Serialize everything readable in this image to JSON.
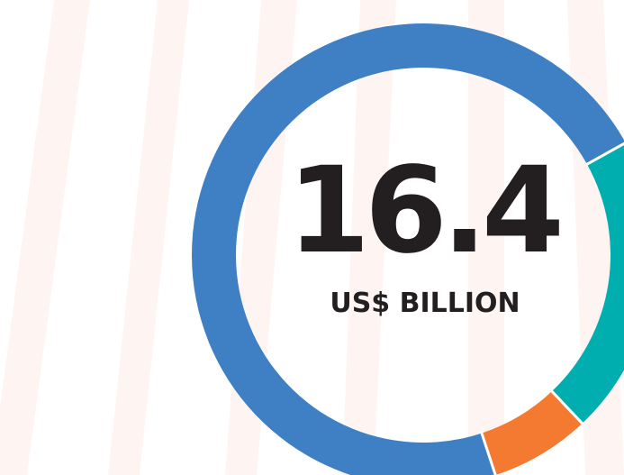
{
  "chart_data": {
    "type": "pie",
    "center_value": "16.4",
    "center_unit": "US$ BILLION",
    "slices": [
      {
        "value": 0.21,
        "color": "#00aeb0"
      },
      {
        "value": 0.07,
        "color": "#f37a30"
      },
      {
        "value": 0.72,
        "color": "#3f80c4"
      }
    ],
    "colors": {
      "text": "#231f20",
      "background_stripes": "#fdf1ec",
      "separator": "#ffffff"
    }
  }
}
